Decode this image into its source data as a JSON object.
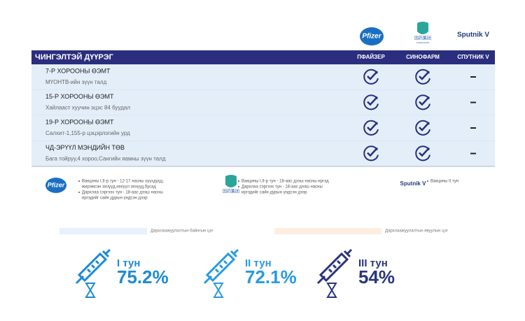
{
  "logos": {
    "pfizer": "Pfizer",
    "sinopharm_cn": "国药集团",
    "sinopharm": "SINOPHARM",
    "sputnik": "Sputnik V"
  },
  "table": {
    "district": "ЧИНГЭЛТЭЙ ДҮҮРЭГ",
    "columns": [
      "ПФАЙЗЕР",
      "СИНОФАРМ",
      "СПУТНИК V"
    ],
    "rows": [
      {
        "title": "7-Р ХОРООНЫ ӨЭМТ",
        "subtitle": "МҮОНТВ-ийн зүүн талд",
        "available": [
          true,
          true,
          false
        ]
      },
      {
        "title": "15-Р ХОРООНЫ ӨЭМТ",
        "subtitle": "Хайлааст хуучин эцэс 84 буудал",
        "available": [
          true,
          true,
          false
        ]
      },
      {
        "title": "19-Р ХОРООНЫ ӨЭМТ",
        "subtitle": "Салхит-1,155-р цэцэрлэгийн урд",
        "available": [
          true,
          true,
          false
        ]
      },
      {
        "title": "ЧД-ЭРҮҮЛ МЭНДИЙН ТӨВ",
        "subtitle": "Бага тойруу,4 хороо,Сангийн яамны зүүн талд",
        "available": [
          true,
          true,
          false
        ]
      }
    ]
  },
  "notes": {
    "pfizer": [
      [
        "Вакцины I,II-р тун - 12-17 насны хүүхдүүд,",
        "жирэмсэн эхчүүд,хөхүүл эхчүүд,бусад"
      ],
      [
        "Дархлаа сэргээх тун - 18-аас дээш насны",
        "иргэдийг сайн дурын үндсэн дээр"
      ]
    ],
    "sinopharm": [
      [
        "Вакцины I,II-р тун - 18-аас дээш насны иргэд"
      ],
      [
        "Дархлаа сэргээх тун - 18-аас дээш насны",
        "иргэдийг сайн дурын үндсэн дээр"
      ]
    ],
    "sputnik": [
      [
        "Вакцины II тун"
      ]
    ]
  },
  "legend": [
    "Дархлаажуулалтын байнгын цэг",
    "Дархлаажуулалтын явуулын цэг"
  ],
  "doses": [
    {
      "label": "I тун",
      "value": "75.2%",
      "color": "#1e8bd3"
    },
    {
      "label": "II тун",
      "value": "72.1%",
      "color": "#2a9be0"
    },
    {
      "label": "III тун",
      "value": "54%",
      "color": "#2b3580"
    }
  ]
}
